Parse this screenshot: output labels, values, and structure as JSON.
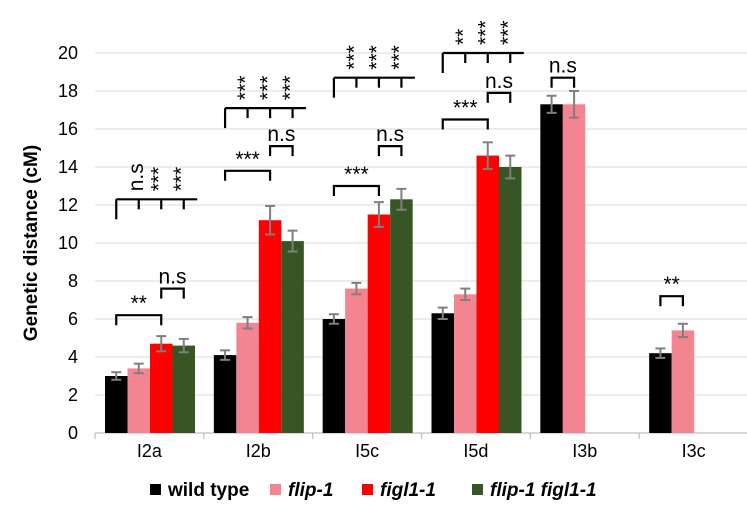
{
  "chart_data": {
    "type": "bar",
    "ylabel": "Genetic distance (cM)",
    "ylim": [
      0,
      20
    ],
    "yticks": [
      0,
      2,
      4,
      6,
      8,
      10,
      12,
      14,
      16,
      18,
      20
    ],
    "grid": true,
    "legend_position": "bottom",
    "categories": [
      "I2a",
      "I2b",
      "I5c",
      "I5d",
      "I3b",
      "I3c"
    ],
    "series": [
      {
        "name": "wild type",
        "italic": false,
        "color": "#000000",
        "values": [
          3.0,
          4.1,
          6.0,
          6.3,
          17.3,
          4.2
        ],
        "errors": [
          0.2,
          0.25,
          0.25,
          0.3,
          0.45,
          0.25
        ]
      },
      {
        "name": "flip-1",
        "italic": true,
        "color": "#F4848F",
        "values": [
          3.4,
          5.8,
          7.6,
          7.3,
          17.3,
          5.4
        ],
        "errors": [
          0.25,
          0.3,
          0.3,
          0.3,
          0.7,
          0.35
        ]
      },
      {
        "name": "figl1-1",
        "italic": true,
        "color": "#FF0000",
        "values": [
          4.7,
          11.2,
          11.5,
          14.6,
          null,
          null
        ],
        "errors": [
          0.4,
          0.75,
          0.65,
          0.7,
          null,
          null
        ]
      },
      {
        "name": "flip-1 figl1-1",
        "italic": true,
        "color": "#375623",
        "values": [
          4.6,
          10.1,
          12.3,
          14.0,
          null,
          null
        ],
        "errors": [
          0.35,
          0.55,
          0.55,
          0.6,
          null,
          null
        ]
      }
    ],
    "annotations": {
      "top_groups": [
        {
          "category": 0,
          "level": 12.3,
          "labels": [
            "n.s",
            "***",
            "***"
          ]
        },
        {
          "category": 1,
          "level": 17.1,
          "labels": [
            "***",
            "***",
            "***"
          ]
        },
        {
          "category": 2,
          "level": 18.7,
          "labels": [
            "***",
            "***",
            "***"
          ]
        },
        {
          "category": 3,
          "level": 20.0,
          "labels": [
            "**",
            "***",
            "***"
          ]
        }
      ],
      "pairwise": [
        {
          "category": 0,
          "from": 0,
          "to": 2,
          "level": 6.2,
          "label": "**"
        },
        {
          "category": 0,
          "from": 2,
          "to": 3,
          "level": 7.6,
          "label": "n.s"
        },
        {
          "category": 1,
          "from": 0,
          "to": 2,
          "level": 13.8,
          "label": "***"
        },
        {
          "category": 1,
          "from": 2,
          "to": 3,
          "level": 15.1,
          "label": "n.s"
        },
        {
          "category": 2,
          "from": 0,
          "to": 2,
          "level": 13.0,
          "label": "***"
        },
        {
          "category": 2,
          "from": 2,
          "to": 3,
          "level": 15.1,
          "label": "n.s"
        },
        {
          "category": 3,
          "from": 0,
          "to": 2,
          "level": 16.5,
          "label": "***"
        },
        {
          "category": 3,
          "from": 2,
          "to": 3,
          "level": 17.9,
          "label": "n.s"
        },
        {
          "category": 4,
          "from": 0,
          "to": 1,
          "level": 18.7,
          "label": "n.s"
        },
        {
          "category": 5,
          "from": 0,
          "to": 1,
          "level": 7.2,
          "label": "**"
        }
      ]
    }
  }
}
